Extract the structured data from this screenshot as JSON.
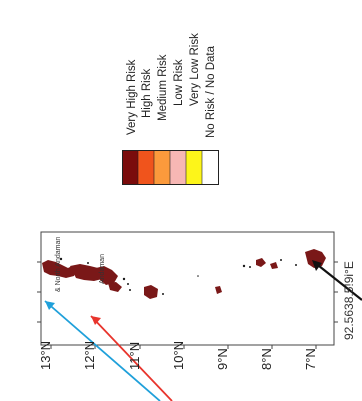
{
  "legend": {
    "items": [
      {
        "label": "Very High Risk",
        "color": "#7a0c0c"
      },
      {
        "label": "High Risk",
        "color": "#f0541c"
      },
      {
        "label": "Medium Risk",
        "color": "#fb9a3c"
      },
      {
        "label": "Low Risk",
        "color": "#f7b7b4"
      },
      {
        "label": "Very Low Risk",
        "color": "#fdf51a"
      },
      {
        "label": "No Risk / No Data",
        "color": "#ffffff"
      }
    ]
  },
  "map": {
    "lat_ticks": [
      "13°N",
      "12°N",
      "11°N",
      "10°N",
      "9°N",
      "8°N",
      "7°N"
    ],
    "place_labels": [
      "& North Andaman",
      "Andaman"
    ],
    "coord_label": "92.5638.5!9i°E",
    "land_color": "#7a1818",
    "arrow_colors": {
      "blue": "#1fa0da",
      "red": "#e8342c",
      "black": "#111111"
    }
  }
}
